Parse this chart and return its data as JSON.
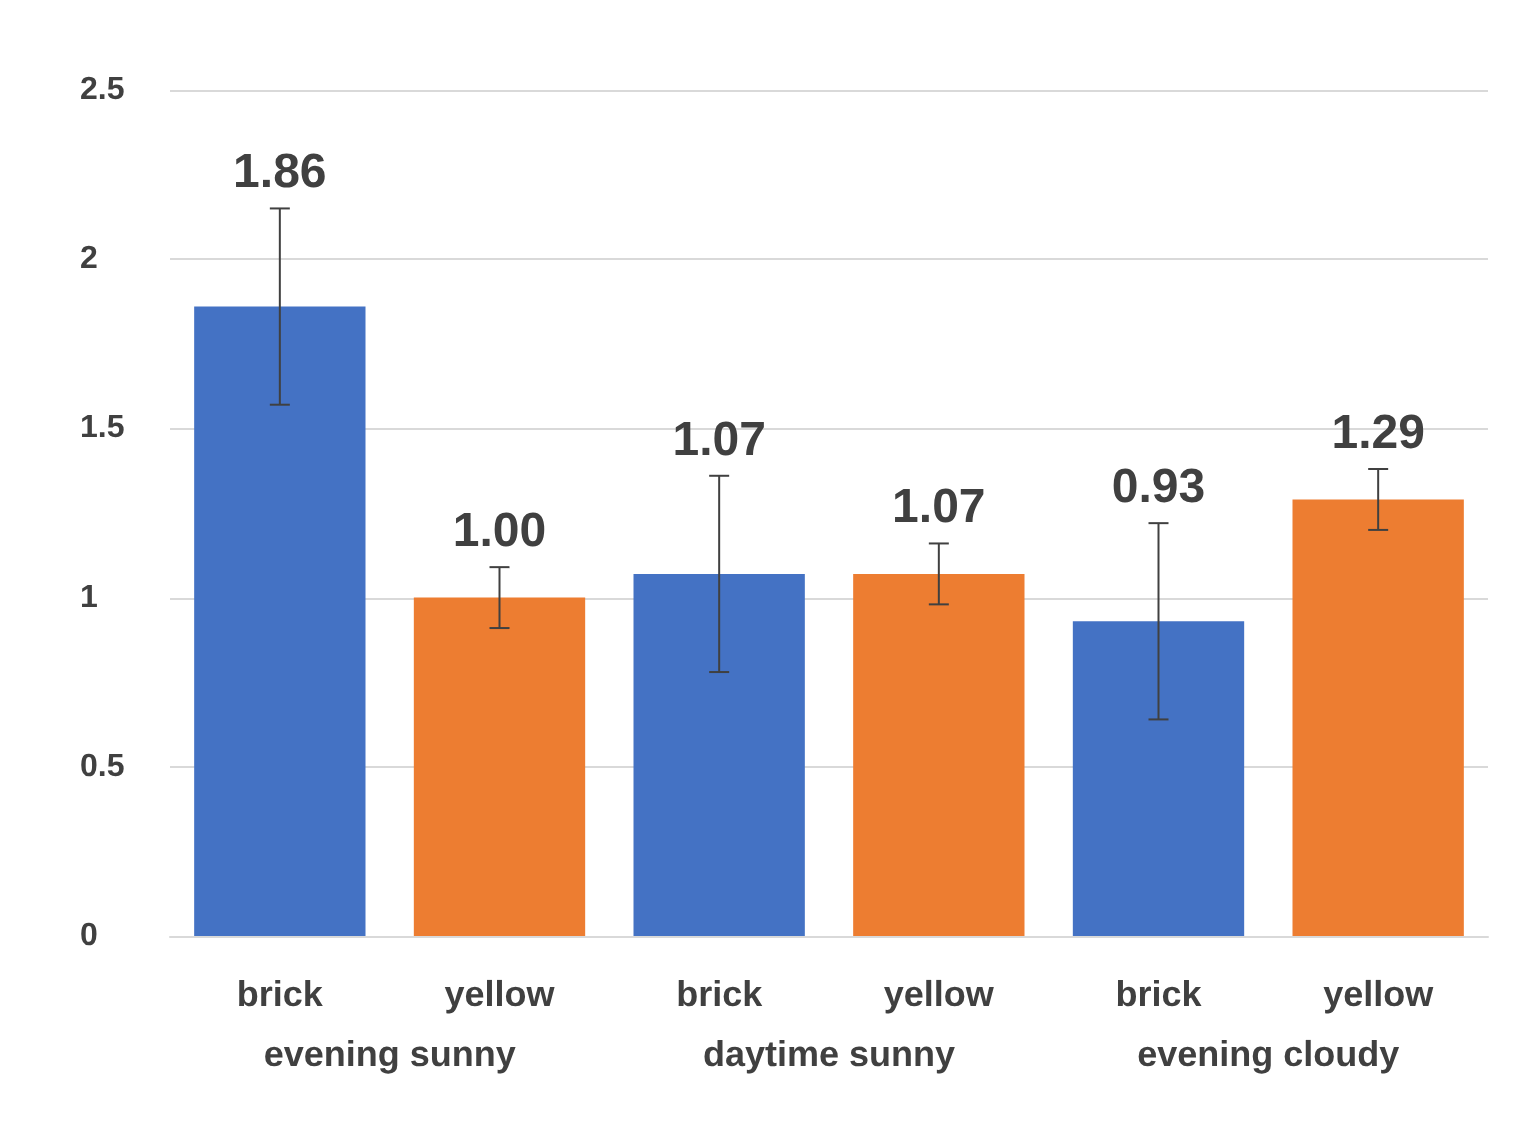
{
  "chart_data": {
    "type": "bar",
    "categories": [
      "evening sunny",
      "daytime sunny",
      "evening cloudy"
    ],
    "series": [
      {
        "name": "brick",
        "color": "#4472c4",
        "values": [
          1.86,
          1.07,
          0.93
        ],
        "errors": [
          0.29,
          0.29,
          0.29
        ],
        "value_labels": [
          "1.86",
          "1.07",
          "0.93"
        ]
      },
      {
        "name": "yellow",
        "color": "#ed7d31",
        "values": [
          1.0,
          1.07,
          1.29
        ],
        "errors": [
          0.09,
          0.09,
          0.09
        ],
        "value_labels": [
          "1.00",
          "1.07",
          "1.29"
        ]
      }
    ],
    "ylim": [
      0,
      2.5
    ],
    "yticks": [
      0,
      0.5,
      1,
      1.5,
      2,
      2.5
    ],
    "grid": "y",
    "legend": false
  }
}
